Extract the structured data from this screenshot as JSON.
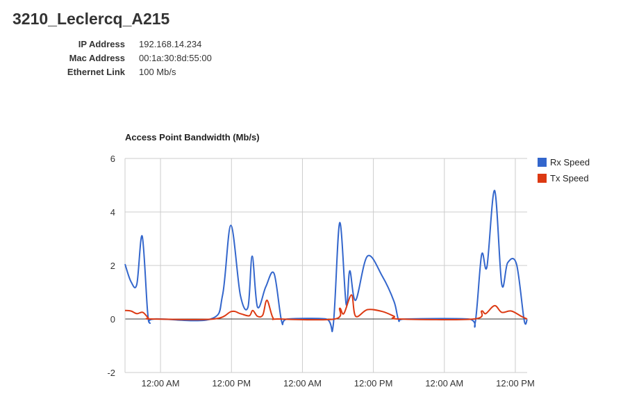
{
  "header": {
    "title": "3210_Leclercq_A215",
    "info": [
      {
        "key": "IP Address",
        "value": "192.168.14.234"
      },
      {
        "key": "Mac Address",
        "value": "00:1a:30:8d:55:00"
      },
      {
        "key": "Ethernet Link",
        "value": "100 Mb/s"
      }
    ]
  },
  "chart_data": {
    "type": "line",
    "title": "Access Point Bandwidth (Mb/s)",
    "xlabel": "",
    "ylabel": "",
    "ylim": [
      -2,
      6
    ],
    "y_ticks": [
      -2,
      0,
      2,
      4,
      6
    ],
    "x_range_hours": [
      0,
      68
    ],
    "x_ticks": [
      {
        "label": "12:00 AM",
        "hours": 6
      },
      {
        "label": "12:00 PM",
        "hours": 18
      },
      {
        "label": "12:00 AM",
        "hours": 30
      },
      {
        "label": "12:00 PM",
        "hours": 42
      },
      {
        "label": "12:00 AM",
        "hours": 54
      },
      {
        "label": "12:00 PM",
        "hours": 66
      }
    ],
    "grid": true,
    "legend_position": "top-right",
    "series": [
      {
        "name": "Rx Speed",
        "color": "#3366cc",
        "points": [
          [
            0,
            2.05
          ],
          [
            1,
            1.4
          ],
          [
            2,
            1.3
          ],
          [
            2.9,
            3.1
          ],
          [
            3.8,
            0.3
          ],
          [
            4.2,
            -0.15
          ],
          [
            5,
            0
          ],
          [
            14.5,
            0
          ],
          [
            16.5,
            0.9
          ],
          [
            17.9,
            3.5
          ],
          [
            19.5,
            0.9
          ],
          [
            20.8,
            0.45
          ],
          [
            21.5,
            2.35
          ],
          [
            22.4,
            0.45
          ],
          [
            23.8,
            1.2
          ],
          [
            25.2,
            1.7
          ],
          [
            26.5,
            -0.1
          ],
          [
            27.5,
            0
          ],
          [
            34,
            0
          ],
          [
            35.2,
            -0.25
          ],
          [
            36.3,
            3.6
          ],
          [
            37.4,
            0.55
          ],
          [
            38,
            1.8
          ],
          [
            39,
            0.7
          ],
          [
            41,
            2.35
          ],
          [
            43.5,
            1.6
          ],
          [
            45.5,
            0.65
          ],
          [
            46.3,
            -0.05
          ],
          [
            47.5,
            0
          ],
          [
            58,
            0
          ],
          [
            59.2,
            -0.15
          ],
          [
            60.3,
            2.4
          ],
          [
            61.2,
            1.95
          ],
          [
            62.5,
            4.8
          ],
          [
            63.7,
            1.3
          ],
          [
            64.7,
            2.1
          ],
          [
            66.2,
            2.05
          ],
          [
            67.5,
            -0.05
          ],
          [
            68,
            0
          ]
        ]
      },
      {
        "name": "Tx Speed",
        "color": "#dc3912",
        "points": [
          [
            0,
            0.32
          ],
          [
            1,
            0.3
          ],
          [
            2,
            0.2
          ],
          [
            3,
            0.25
          ],
          [
            3.9,
            0.05
          ],
          [
            4.5,
            0
          ],
          [
            15,
            0
          ],
          [
            18,
            0.28
          ],
          [
            19.5,
            0.2
          ],
          [
            21,
            0.12
          ],
          [
            21.6,
            0.32
          ],
          [
            22.4,
            0.1
          ],
          [
            23.3,
            0.15
          ],
          [
            24,
            0.7
          ],
          [
            25,
            0.05
          ],
          [
            26,
            0
          ],
          [
            35.5,
            0
          ],
          [
            36.3,
            0.4
          ],
          [
            37,
            0.2
          ],
          [
            38.3,
            0.9
          ],
          [
            39,
            0.1
          ],
          [
            41,
            0.35
          ],
          [
            43.5,
            0.28
          ],
          [
            45.5,
            0.1
          ],
          [
            46.3,
            0
          ],
          [
            59,
            0
          ],
          [
            60.3,
            0.3
          ],
          [
            61,
            0.2
          ],
          [
            62.5,
            0.5
          ],
          [
            63.7,
            0.25
          ],
          [
            65.3,
            0.3
          ],
          [
            67,
            0.1
          ],
          [
            68,
            0
          ]
        ]
      }
    ]
  }
}
